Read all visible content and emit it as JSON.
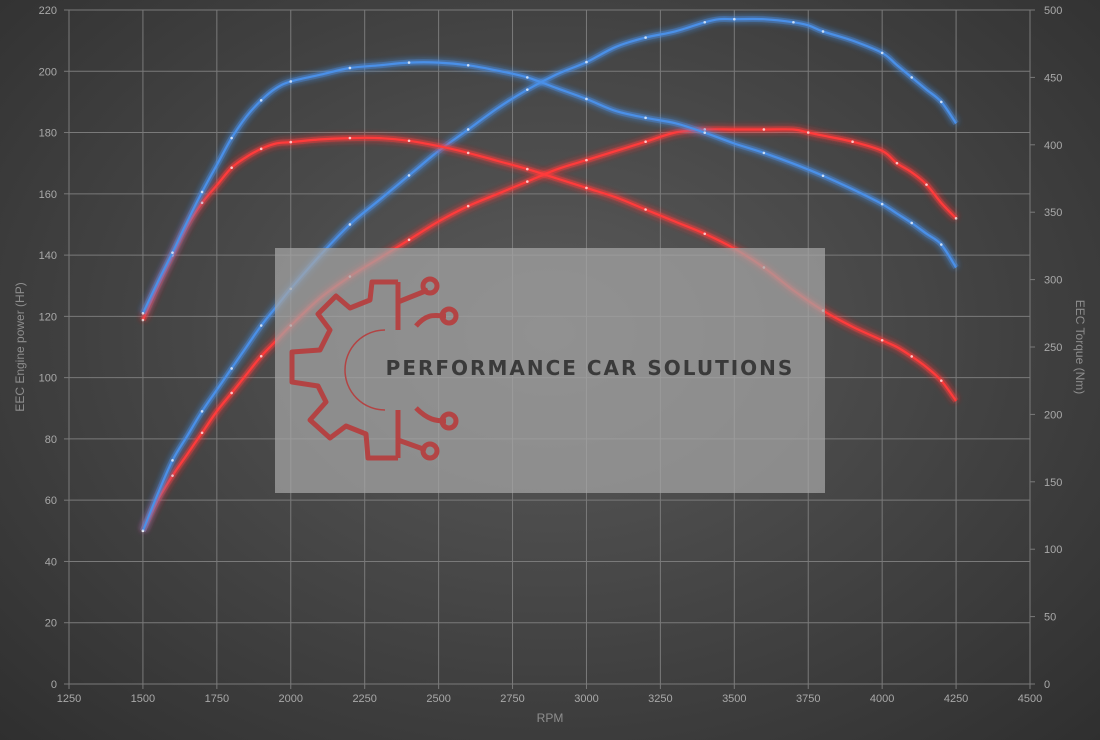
{
  "chart_data": {
    "type": "line",
    "title": "",
    "xlabel": "RPM",
    "ylabel_left": "EEC Engine power (HP)",
    "ylabel_right": "EEC Torque (Nm)",
    "xlim": [
      1250,
      4500
    ],
    "ylim_left": [
      0,
      220
    ],
    "ylim_right": [
      0,
      500
    ],
    "x_ticks": [
      1250,
      1500,
      1750,
      2000,
      2250,
      2500,
      2750,
      3000,
      3250,
      3500,
      3750,
      4000,
      4250,
      4500
    ],
    "y_left_ticks": [
      0,
      20,
      40,
      60,
      80,
      100,
      120,
      140,
      160,
      180,
      200,
      220
    ],
    "y_right_ticks": [
      0,
      50,
      100,
      150,
      200,
      250,
      300,
      350,
      400,
      450,
      500
    ],
    "grid": true,
    "legend": "none",
    "series": [
      {
        "color": "#ff3b3b",
        "axis": "left",
        "x": [
          1500,
          1550,
          1600,
          1650,
          1700,
          1750,
          1800,
          1850,
          1900,
          1950,
          2000,
          2100,
          2200,
          2300,
          2400,
          2500,
          2600,
          2700,
          2800,
          2900,
          3000,
          3100,
          3200,
          3300,
          3400,
          3500,
          3600,
          3700,
          3750,
          3800,
          3900,
          4000,
          4050,
          4100,
          4150,
          4200,
          4250
        ],
        "values": [
          50,
          60,
          68,
          75,
          82,
          89,
          95,
          101,
          107,
          112,
          117,
          126,
          133,
          139,
          145,
          151,
          156,
          160,
          164,
          168,
          171,
          174,
          177,
          180,
          181,
          181,
          181,
          181,
          180,
          179,
          177,
          174,
          170,
          167,
          163,
          157,
          152
        ]
      },
      {
        "color": "#4a90e8",
        "axis": "left",
        "x": [
          1500,
          1550,
          1600,
          1650,
          1700,
          1750,
          1800,
          1850,
          1900,
          1950,
          2000,
          2100,
          2200,
          2300,
          2400,
          2500,
          2600,
          2700,
          2800,
          2900,
          3000,
          3100,
          3200,
          3300,
          3400,
          3450,
          3500,
          3600,
          3700,
          3750,
          3800,
          3900,
          4000,
          4050,
          4100,
          4150,
          4200,
          4250
        ],
        "values": [
          50,
          62,
          73,
          81,
          89,
          96,
          103,
          110,
          117,
          123,
          129,
          140,
          150,
          158,
          166,
          174,
          181,
          188,
          194,
          199,
          203,
          208,
          211,
          213,
          216,
          217,
          217,
          217,
          216,
          215,
          213,
          210,
          206,
          202,
          198,
          194,
          190,
          183
        ]
      },
      {
        "color": "#ff3b3b",
        "axis": "right",
        "x": [
          1500,
          1550,
          1600,
          1650,
          1700,
          1750,
          1800,
          1850,
          1900,
          1950,
          2000,
          2100,
          2200,
          2300,
          2400,
          2500,
          2600,
          2700,
          2800,
          2900,
          3000,
          3100,
          3200,
          3300,
          3400,
          3500,
          3600,
          3700,
          3800,
          3900,
          4000,
          4050,
          4100,
          4150,
          4200,
          4250
        ],
        "values": [
          270,
          295,
          318,
          340,
          357,
          370,
          383,
          391,
          397,
          401,
          402,
          404,
          405,
          405,
          403,
          399,
          394,
          388,
          382,
          375,
          368,
          361,
          352,
          343,
          334,
          323,
          309,
          292,
          277,
          265,
          255,
          250,
          243,
          235,
          225,
          210
        ]
      },
      {
        "color": "#4a90e8",
        "axis": "right",
        "x": [
          1500,
          1550,
          1600,
          1650,
          1700,
          1750,
          1800,
          1850,
          1900,
          1950,
          2000,
          2100,
          2200,
          2300,
          2400,
          2500,
          2600,
          2700,
          2800,
          2900,
          3000,
          3100,
          3200,
          3300,
          3400,
          3500,
          3600,
          3700,
          3800,
          3900,
          4000,
          4050,
          4100,
          4150,
          4200,
          4250
        ],
        "values": [
          275,
          298,
          320,
          343,
          365,
          385,
          405,
          421,
          433,
          442,
          447,
          452,
          457,
          459,
          461,
          461,
          459,
          455,
          450,
          442,
          434,
          425,
          420,
          416,
          409,
          401,
          394,
          386,
          377,
          367,
          356,
          349,
          342,
          334,
          326,
          309
        ]
      }
    ]
  },
  "watermark": {
    "text": "PERFORMANCE CAR SOLUTIONS",
    "logo_icon": "gear-circuit-icon",
    "logo_color": "#b83c3c",
    "panel_color": "#a6a6a6"
  },
  "colors": {
    "grid": "#7a7a7a",
    "power_and_torque_red": "#ff3b3b",
    "power_and_torque_blue": "#4a90e8"
  }
}
